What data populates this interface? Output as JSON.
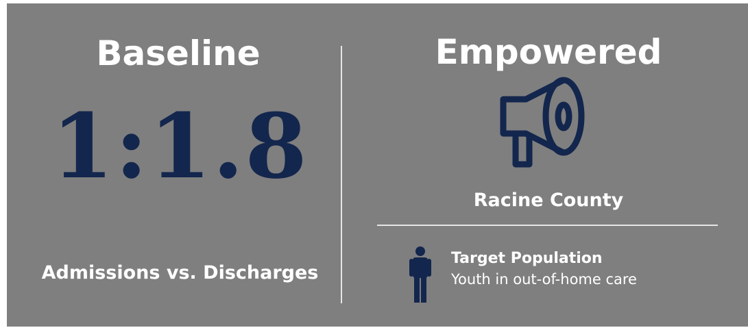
{
  "left": {
    "title": "Baseline",
    "ratio": "1:1.8",
    "caption": "Admissions vs. Discharges"
  },
  "right": {
    "title": "Empowered",
    "location": "Racine County",
    "target_heading": "Target Population",
    "target_text": "Youth in out-of-home care"
  }
}
